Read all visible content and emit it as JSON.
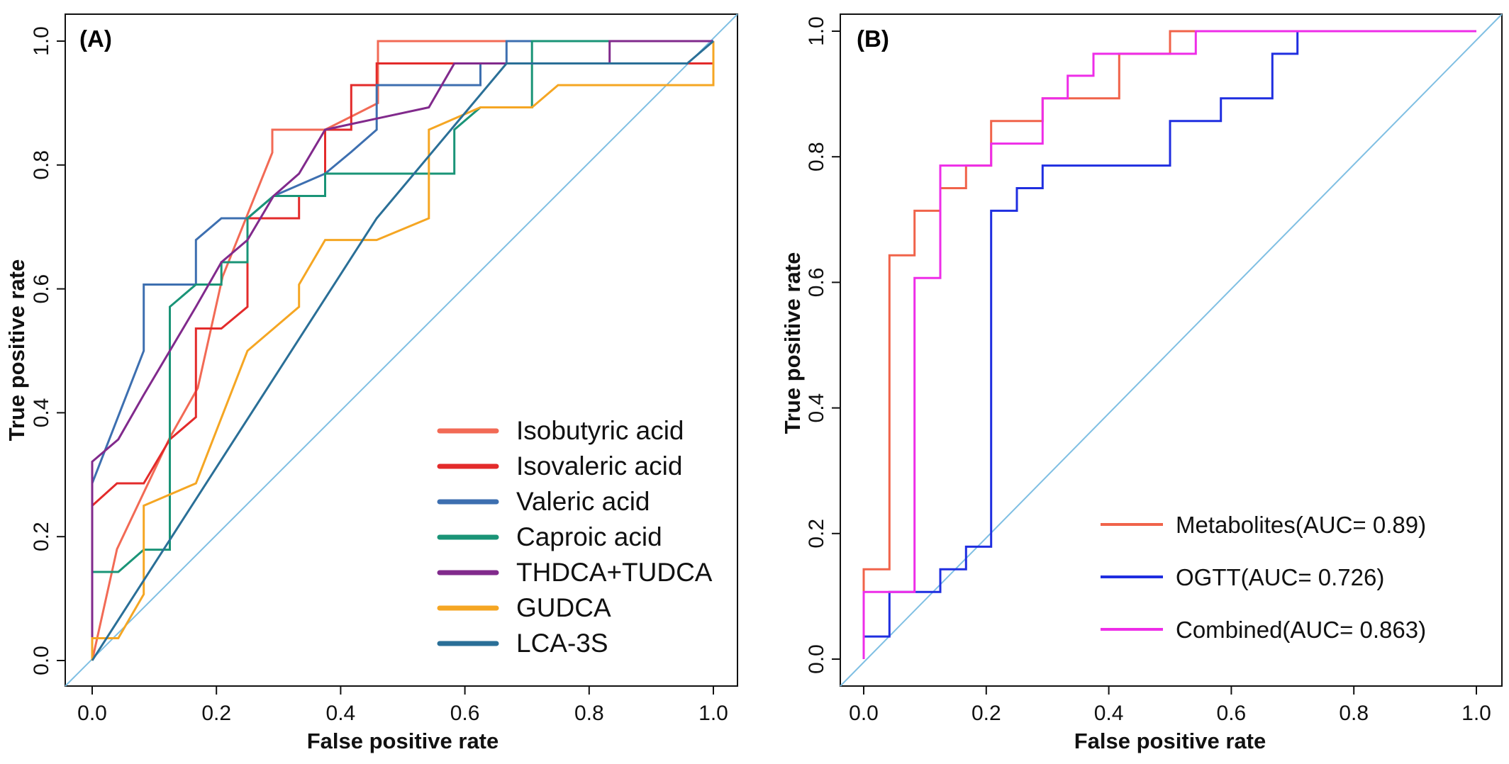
{
  "chart_data": [
    {
      "type": "line",
      "panel_label": "(A)",
      "xlabel": "False positive rate",
      "ylabel": "True positive rate",
      "xlim": [
        0,
        1
      ],
      "ylim": [
        0,
        1
      ],
      "xticks": [
        "0.0",
        "0.2",
        "0.4",
        "0.6",
        "0.8",
        "1.0"
      ],
      "yticks": [
        "0.0",
        "0.2",
        "0.4",
        "0.6",
        "0.8",
        "1.0"
      ],
      "grid": false,
      "legend_position": "bottom-right",
      "diagonal_color": "#7fbfe3",
      "series": [
        {
          "name": "Isobutyric acid",
          "color": "#f26a55",
          "points": [
            [
              0,
              0
            ],
            [
              0.04,
              0.18
            ],
            [
              0.125,
              0.36
            ],
            [
              0.17,
              0.44
            ],
            [
              0.21,
              0.62
            ],
            [
              0.25,
              0.72
            ],
            [
              0.29,
              0.82
            ],
            [
              0.29,
              0.857
            ],
            [
              0.375,
              0.857
            ],
            [
              0.46,
              0.9
            ],
            [
              0.46,
              1
            ],
            [
              1,
              1
            ]
          ]
        },
        {
          "name": "Isovaleric acid",
          "color": "#e32b2b",
          "points": [
            [
              0,
              0
            ],
            [
              0,
              0.25
            ],
            [
              0.04,
              0.286
            ],
            [
              0.083,
              0.286
            ],
            [
              0.125,
              0.357
            ],
            [
              0.167,
              0.393
            ],
            [
              0.167,
              0.536
            ],
            [
              0.208,
              0.536
            ],
            [
              0.25,
              0.571
            ],
            [
              0.25,
              0.714
            ],
            [
              0.333,
              0.714
            ],
            [
              0.333,
              0.75
            ],
            [
              0.375,
              0.75
            ],
            [
              0.375,
              0.857
            ],
            [
              0.417,
              0.857
            ],
            [
              0.417,
              0.929
            ],
            [
              0.458,
              0.929
            ],
            [
              0.458,
              0.964
            ],
            [
              1,
              0.964
            ],
            [
              1,
              1
            ]
          ]
        },
        {
          "name": "Valeric acid",
          "color": "#3d6fb0",
          "points": [
            [
              0,
              0
            ],
            [
              0,
              0.286
            ],
            [
              0.083,
              0.5
            ],
            [
              0.083,
              0.607
            ],
            [
              0.167,
              0.607
            ],
            [
              0.167,
              0.679
            ],
            [
              0.208,
              0.714
            ],
            [
              0.25,
              0.714
            ],
            [
              0.292,
              0.75
            ],
            [
              0.375,
              0.786
            ],
            [
              0.417,
              0.821
            ],
            [
              0.458,
              0.857
            ],
            [
              0.458,
              0.929
            ],
            [
              0.625,
              0.929
            ],
            [
              0.625,
              0.964
            ],
            [
              0.667,
              0.964
            ],
            [
              0.667,
              1
            ],
            [
              1,
              1
            ]
          ]
        },
        {
          "name": "Caproic acid",
          "color": "#1a9477",
          "points": [
            [
              0,
              0
            ],
            [
              0,
              0.143
            ],
            [
              0.042,
              0.143
            ],
            [
              0.083,
              0.179
            ],
            [
              0.125,
              0.179
            ],
            [
              0.125,
              0.571
            ],
            [
              0.167,
              0.607
            ],
            [
              0.208,
              0.607
            ],
            [
              0.208,
              0.643
            ],
            [
              0.25,
              0.643
            ],
            [
              0.25,
              0.714
            ],
            [
              0.292,
              0.75
            ],
            [
              0.375,
              0.75
            ],
            [
              0.375,
              0.786
            ],
            [
              0.583,
              0.786
            ],
            [
              0.583,
              0.857
            ],
            [
              0.625,
              0.893
            ],
            [
              0.708,
              0.893
            ],
            [
              0.708,
              1
            ],
            [
              1,
              1
            ]
          ]
        },
        {
          "name": "THDCA+TUDCA",
          "color": "#812a8c",
          "points": [
            [
              0,
              0
            ],
            [
              0,
              0.321
            ],
            [
              0.042,
              0.357
            ],
            [
              0.083,
              0.429
            ],
            [
              0.125,
              0.5
            ],
            [
              0.167,
              0.571
            ],
            [
              0.208,
              0.643
            ],
            [
              0.25,
              0.679
            ],
            [
              0.292,
              0.75
            ],
            [
              0.333,
              0.786
            ],
            [
              0.375,
              0.857
            ],
            [
              0.458,
              0.875
            ],
            [
              0.542,
              0.893
            ],
            [
              0.583,
              0.964
            ],
            [
              0.833,
              0.964
            ],
            [
              0.833,
              1
            ],
            [
              1,
              1
            ]
          ]
        },
        {
          "name": "GUDCA",
          "color": "#f5a623",
          "points": [
            [
              0,
              0
            ],
            [
              0,
              0.036
            ],
            [
              0.042,
              0.036
            ],
            [
              0.083,
              0.107
            ],
            [
              0.083,
              0.25
            ],
            [
              0.167,
              0.286
            ],
            [
              0.25,
              0.5
            ],
            [
              0.333,
              0.571
            ],
            [
              0.333,
              0.607
            ],
            [
              0.375,
              0.679
            ],
            [
              0.458,
              0.679
            ],
            [
              0.542,
              0.714
            ],
            [
              0.542,
              0.857
            ],
            [
              0.625,
              0.893
            ],
            [
              0.708,
              0.893
            ],
            [
              0.75,
              0.929
            ],
            [
              1,
              0.929
            ],
            [
              1,
              1
            ]
          ]
        },
        {
          "name": "LCA-3S",
          "color": "#2a6f97",
          "points": [
            [
              0,
              0
            ],
            [
              0.458,
              0.714
            ],
            [
              0.667,
              0.964
            ],
            [
              0.958,
              0.964
            ],
            [
              1,
              1
            ]
          ]
        }
      ]
    },
    {
      "type": "line",
      "panel_label": "(B)",
      "xlabel": "False positive rate",
      "ylabel": "True positive rate",
      "xlim": [
        0,
        1
      ],
      "ylim": [
        0,
        1
      ],
      "xticks": [
        "0.0",
        "0.2",
        "0.4",
        "0.6",
        "0.8",
        "1.0"
      ],
      "yticks": [
        "0.0",
        "0.2",
        "0.4",
        "0.6",
        "0.8",
        "1.0"
      ],
      "grid": false,
      "legend_position": "bottom-right",
      "diagonal_color": "#7fbfe3",
      "series": [
        {
          "name": "Metabolites(AUC= 0.89)",
          "color": "#f0634a",
          "points": [
            [
              0,
              0
            ],
            [
              0,
              0.143
            ],
            [
              0.042,
              0.143
            ],
            [
              0.042,
              0.643
            ],
            [
              0.083,
              0.643
            ],
            [
              0.083,
              0.714
            ],
            [
              0.125,
              0.714
            ],
            [
              0.125,
              0.75
            ],
            [
              0.167,
              0.75
            ],
            [
              0.167,
              0.786
            ],
            [
              0.208,
              0.786
            ],
            [
              0.208,
              0.857
            ],
            [
              0.292,
              0.857
            ],
            [
              0.292,
              0.893
            ],
            [
              0.417,
              0.893
            ],
            [
              0.417,
              0.964
            ],
            [
              0.5,
              0.964
            ],
            [
              0.5,
              1
            ],
            [
              1,
              1
            ]
          ]
        },
        {
          "name": "OGTT(AUC= 0.726)",
          "color": "#1f2ee0",
          "points": [
            [
              0,
              0
            ],
            [
              0,
              0.036
            ],
            [
              0.042,
              0.036
            ],
            [
              0.042,
              0.107
            ],
            [
              0.125,
              0.107
            ],
            [
              0.125,
              0.143
            ],
            [
              0.167,
              0.143
            ],
            [
              0.167,
              0.179
            ],
            [
              0.208,
              0.179
            ],
            [
              0.208,
              0.714
            ],
            [
              0.25,
              0.714
            ],
            [
              0.25,
              0.75
            ],
            [
              0.292,
              0.75
            ],
            [
              0.292,
              0.786
            ],
            [
              0.5,
              0.786
            ],
            [
              0.5,
              0.857
            ],
            [
              0.583,
              0.857
            ],
            [
              0.583,
              0.893
            ],
            [
              0.667,
              0.893
            ],
            [
              0.667,
              0.964
            ],
            [
              0.708,
              0.964
            ],
            [
              0.708,
              1
            ],
            [
              1,
              1
            ]
          ]
        },
        {
          "name": "Combined(AUC= 0.863)",
          "color": "#ee2de8",
          "points": [
            [
              0,
              0
            ],
            [
              0,
              0.107
            ],
            [
              0.083,
              0.107
            ],
            [
              0.083,
              0.607
            ],
            [
              0.125,
              0.607
            ],
            [
              0.125,
              0.786
            ],
            [
              0.208,
              0.786
            ],
            [
              0.208,
              0.821
            ],
            [
              0.292,
              0.821
            ],
            [
              0.292,
              0.893
            ],
            [
              0.333,
              0.893
            ],
            [
              0.333,
              0.929
            ],
            [
              0.375,
              0.929
            ],
            [
              0.375,
              0.964
            ],
            [
              0.542,
              0.964
            ],
            [
              0.542,
              1
            ],
            [
              1,
              1
            ]
          ]
        }
      ]
    }
  ]
}
